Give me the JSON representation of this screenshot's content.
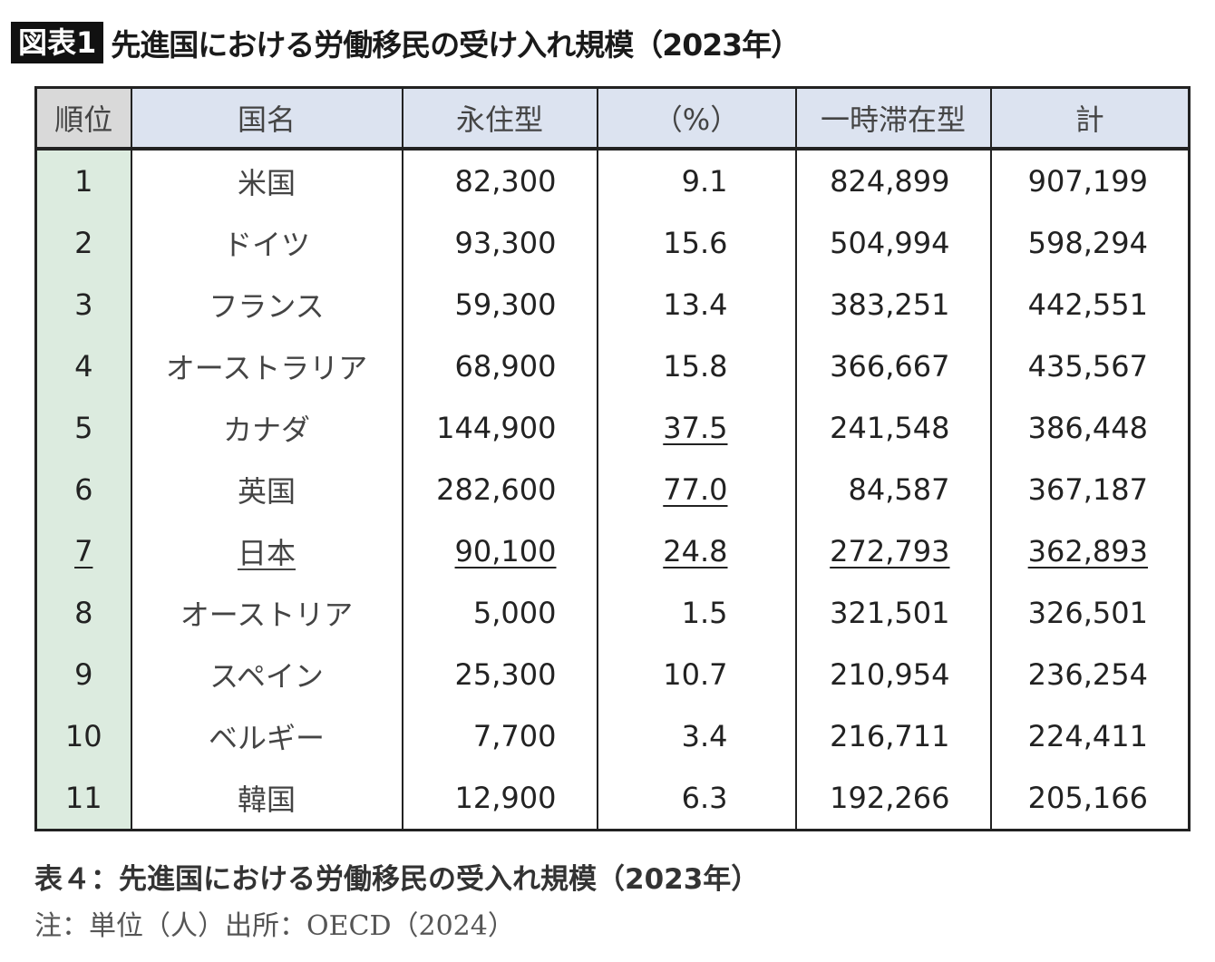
{
  "title": {
    "badge": "図表1",
    "text": "先進国における労働移民の受け入れ規模（2023年）"
  },
  "table": {
    "headers": [
      "順位",
      "国名",
      "永住型",
      "（%）",
      "一時滞在型",
      "計"
    ],
    "rows": [
      {
        "rank": "1",
        "country": "米国",
        "permanent": "82,300",
        "pct": "9.1",
        "temporary": "824,899",
        "total": "907,199",
        "underlined": []
      },
      {
        "rank": "2",
        "country": "ドイツ",
        "permanent": "93,300",
        "pct": "15.6",
        "temporary": "504,994",
        "total": "598,294",
        "underlined": []
      },
      {
        "rank": "3",
        "country": "フランス",
        "permanent": "59,300",
        "pct": "13.4",
        "temporary": "383,251",
        "total": "442,551",
        "underlined": []
      },
      {
        "rank": "4",
        "country": "オーストラリア",
        "permanent": "68,900",
        "pct": "15.8",
        "temporary": "366,667",
        "total": "435,567",
        "underlined": []
      },
      {
        "rank": "5",
        "country": "カナダ",
        "permanent": "144,900",
        "pct": "37.5",
        "temporary": "241,548",
        "total": "386,448",
        "underlined": [
          "pct"
        ]
      },
      {
        "rank": "6",
        "country": "英国",
        "permanent": "282,600",
        "pct": "77.0",
        "temporary": "84,587",
        "total": "367,187",
        "underlined": [
          "pct"
        ]
      },
      {
        "rank": "7",
        "country": "日本",
        "permanent": "90,100",
        "pct": "24.8",
        "temporary": "272,793",
        "total": "362,893",
        "underlined": [
          "rank",
          "country",
          "permanent",
          "pct",
          "temporary",
          "total"
        ]
      },
      {
        "rank": "8",
        "country": "オーストリア",
        "permanent": "5,000",
        "pct": "1.5",
        "temporary": "321,501",
        "total": "326,501",
        "underlined": []
      },
      {
        "rank": "9",
        "country": "スペイン",
        "permanent": "25,300",
        "pct": "10.7",
        "temporary": "210,954",
        "total": "236,254",
        "underlined": []
      },
      {
        "rank": "10",
        "country": "ベルギー",
        "permanent": "7,700",
        "pct": "3.4",
        "temporary": "216,711",
        "total": "224,411",
        "underlined": []
      },
      {
        "rank": "11",
        "country": "韓国",
        "permanent": "12,900",
        "pct": "6.3",
        "temporary": "192,266",
        "total": "205,166",
        "underlined": []
      }
    ]
  },
  "caption": "表４：先進国における労働移民の受入れ規模（2023年）",
  "note": "注：単位（人）出所：OECD（2024）",
  "colors": {
    "header_bg": "#dce3f0",
    "rank_header_bg": "#d9d9d9",
    "rank_col_bg": "#dcebdf",
    "badge_bg": "#111111"
  }
}
